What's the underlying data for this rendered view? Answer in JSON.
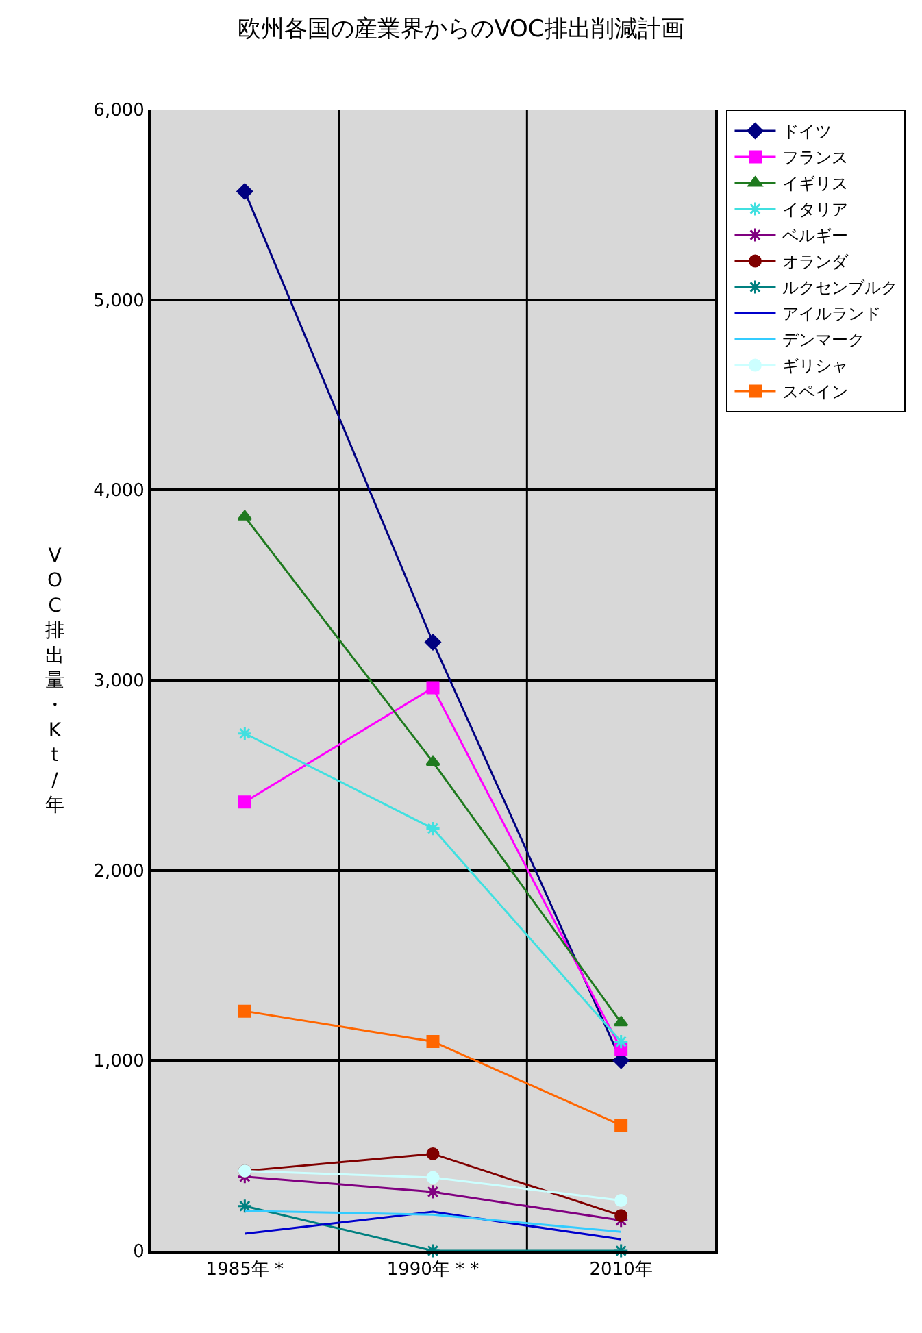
{
  "chart_data": {
    "type": "line",
    "title": "欧州各国の産業界からのVOC排出削減計画",
    "ylabel": "VOC排出量・Kt/年",
    "categories": [
      "1985年 *",
      "1990年 * *",
      "2010年"
    ],
    "ylim": [
      0,
      6000
    ],
    "yticks": [
      {
        "value": 0,
        "label": "0"
      },
      {
        "value": 1000,
        "label": "1,000"
      },
      {
        "value": 2000,
        "label": "2,000"
      },
      {
        "value": 3000,
        "label": "3,000"
      },
      {
        "value": 4000,
        "label": "4,000"
      },
      {
        "value": 5000,
        "label": "5,000"
      },
      {
        "value": 6000,
        "label": "6,000"
      }
    ],
    "grid": true,
    "legend": "right",
    "line_style": "solid",
    "series": [
      {
        "name": "ドイツ",
        "color": "#000080",
        "marker": "diamond",
        "values": [
          5570,
          3200,
          1000
        ]
      },
      {
        "name": "フランス",
        "color": "#ff00ff",
        "marker": "square",
        "values": [
          2360,
          2960,
          1060
        ]
      },
      {
        "name": "イギリス",
        "color": "#1f7a1f",
        "marker": "triangle",
        "values": [
          3860,
          2570,
          1200
        ]
      },
      {
        "name": "イタリア",
        "color": "#40e0e0",
        "marker": "cross",
        "values": [
          2720,
          2220,
          1100
        ]
      },
      {
        "name": "ベルギー",
        "color": "#800080",
        "marker": "cross",
        "values": [
          390,
          310,
          160
        ]
      },
      {
        "name": "オランダ",
        "color": "#800000",
        "marker": "circle",
        "values": [
          420,
          510,
          185
        ]
      },
      {
        "name": "ルクセンブルク",
        "color": "#008080",
        "marker": "cross",
        "values": [
          235,
          0,
          0
        ]
      },
      {
        "name": "アイルランド",
        "color": "#0000cc",
        "marker": "none",
        "values": [
          90,
          205,
          60
        ]
      },
      {
        "name": "デンマーク",
        "color": "#33ccff",
        "marker": "none",
        "values": [
          210,
          190,
          100
        ]
      },
      {
        "name": "ギリシャ",
        "color": "#ccffff",
        "marker": "circle",
        "values": [
          420,
          385,
          265
        ]
      },
      {
        "name": "スペイン",
        "color": "#ff6600",
        "marker": "square",
        "values": [
          1260,
          1100,
          660
        ]
      }
    ]
  }
}
